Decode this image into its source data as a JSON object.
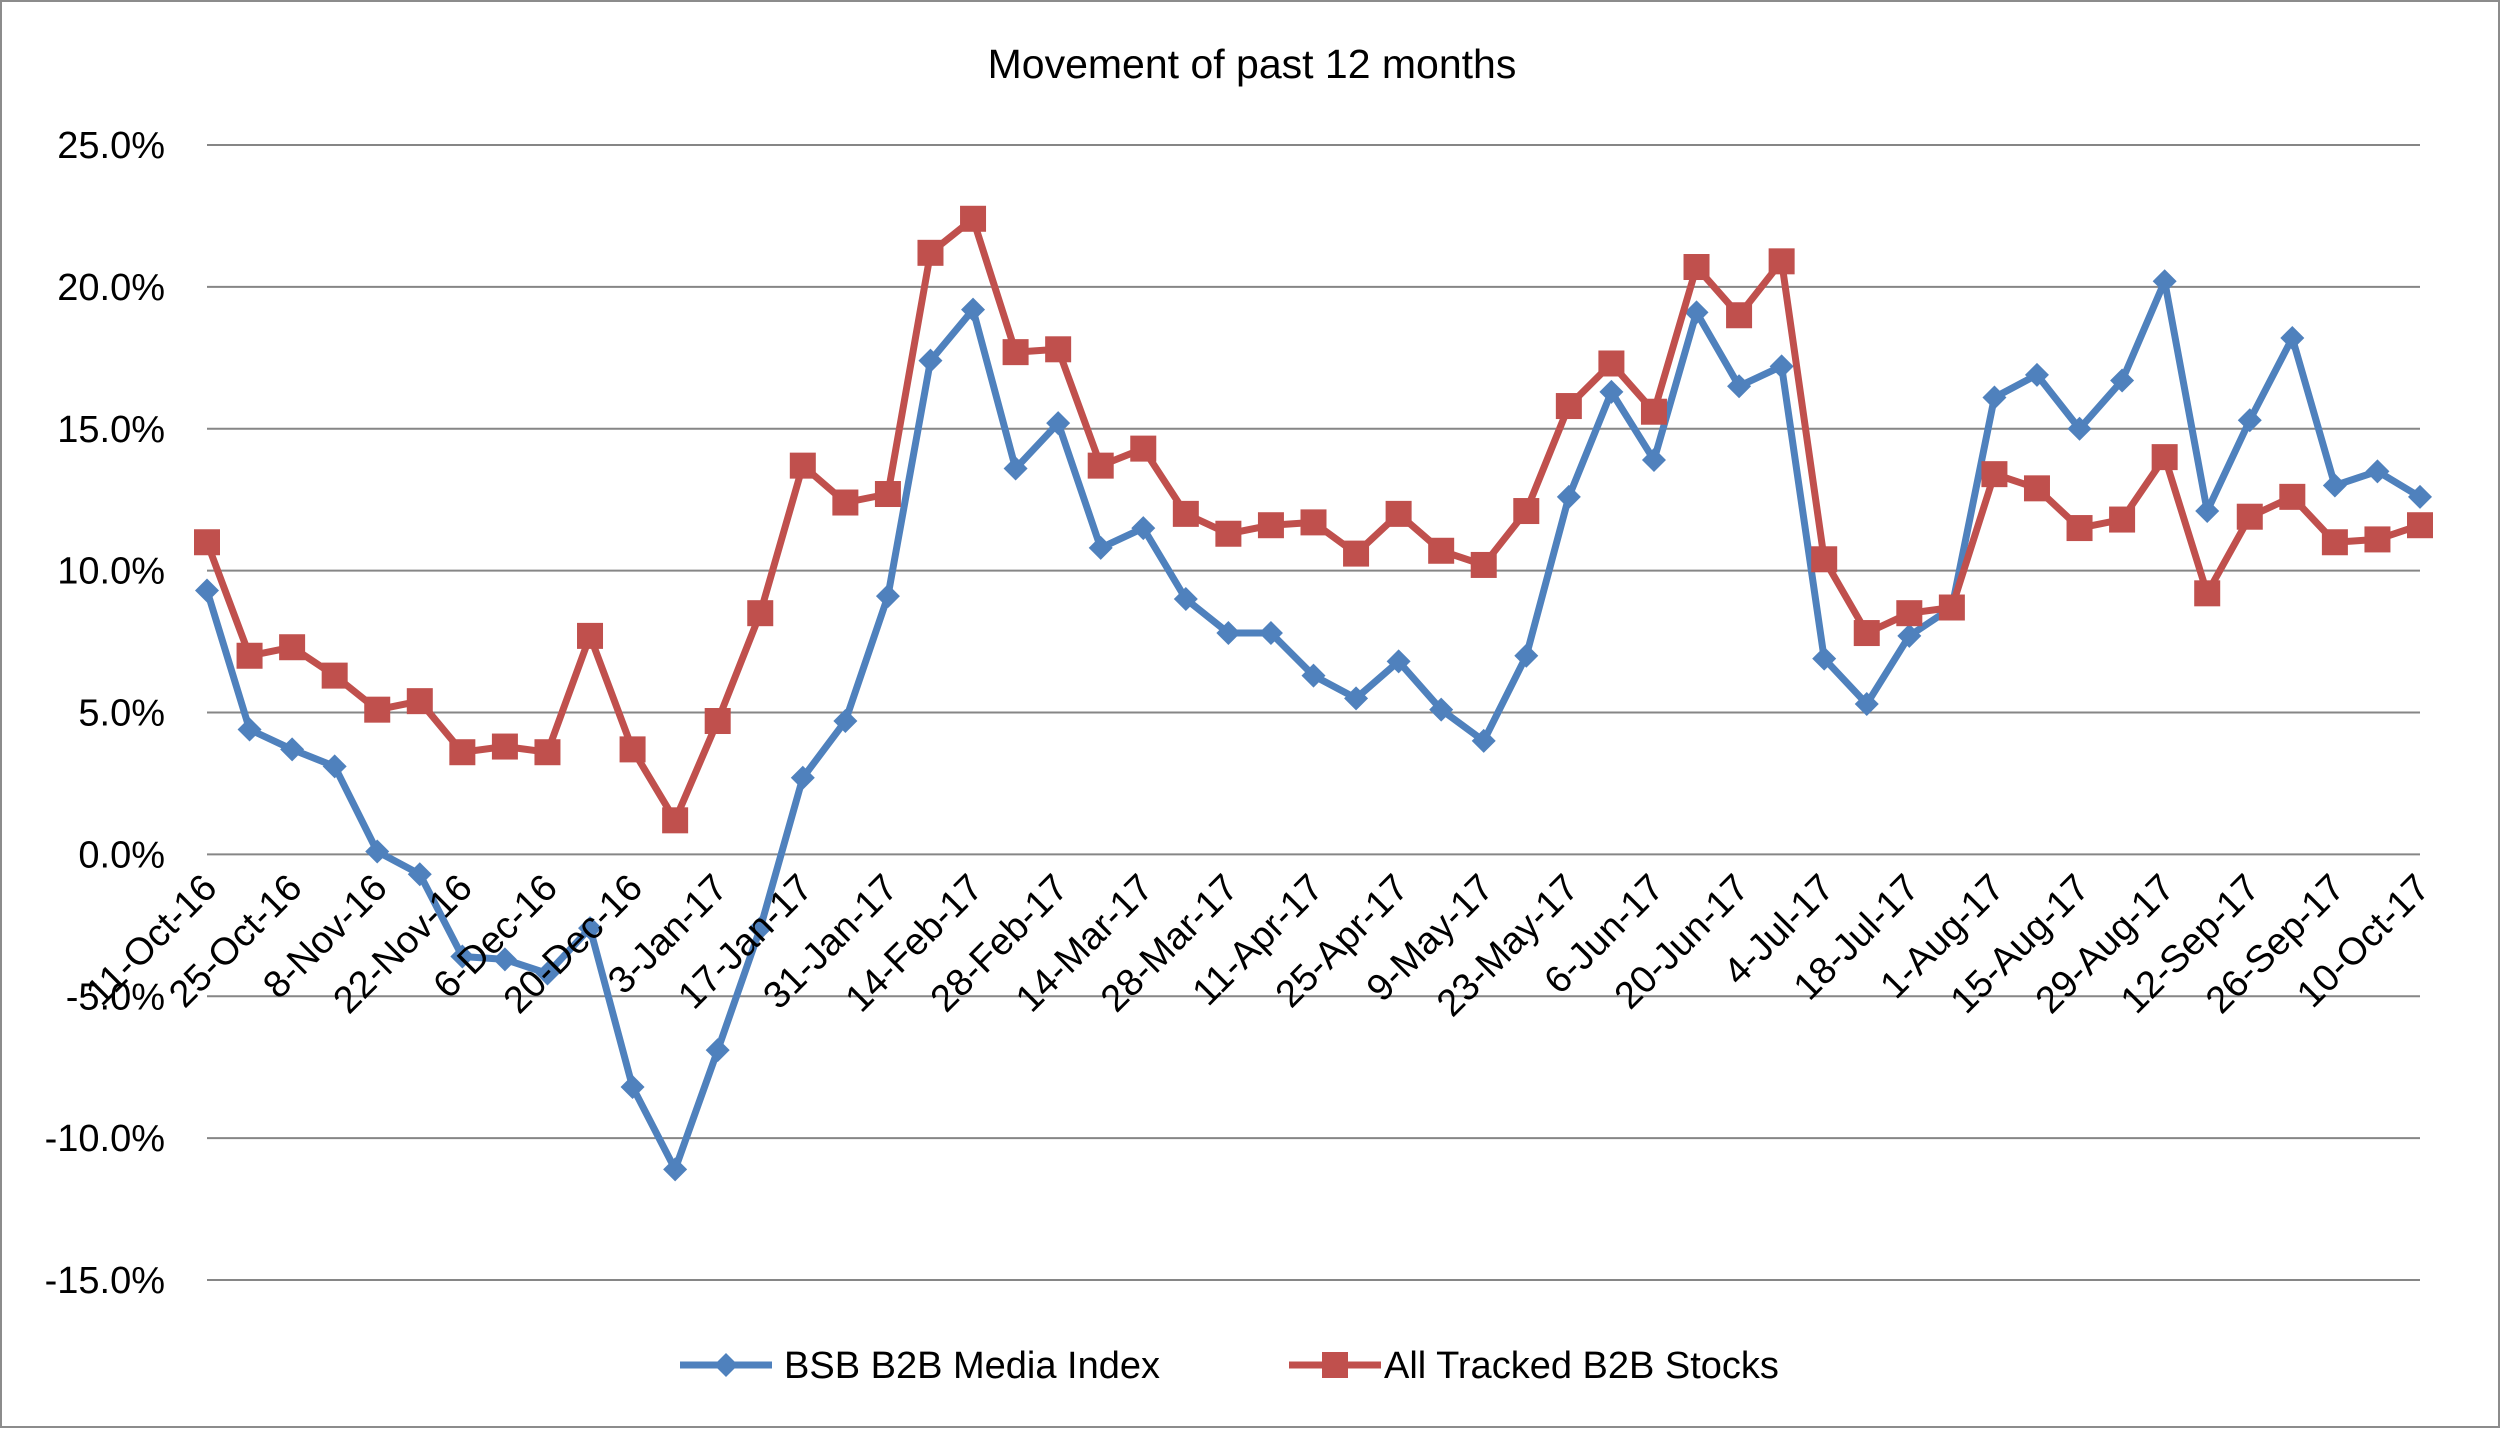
{
  "chart_data": {
    "type": "line",
    "title": "Movement of past 12 months",
    "xlabel": "",
    "ylabel": "",
    "ylim": [
      -15,
      25
    ],
    "ytick_step": 5,
    "yticks": [
      "25.0%",
      "20.0%",
      "15.0%",
      "10.0%",
      "5.0%",
      "0.0%",
      "-5.0%",
      "-10.0%",
      "-15.0%"
    ],
    "grid": true,
    "legend_position": "bottom",
    "x_tick_labels": [
      "11-Oct-16",
      "25-Oct-16",
      "8-Nov-16",
      "22-Nov-16",
      "6-Dec-16",
      "20-Dec-16",
      "3-Jan-17",
      "17-Jan-17",
      "31-Jan-17",
      "14-Feb-17",
      "28-Feb-17",
      "14-Mar-17",
      "28-Mar-17",
      "11-Apr-17",
      "25-Apr-17",
      "9-May-17",
      "23-May-17",
      "6-Jun-17",
      "20-Jun-17",
      "4-Jul-17",
      "18-Jul-17",
      "1-Aug-17",
      "15-Aug-17",
      "29-Aug-17",
      "12-Sep-17",
      "26-Sep-17",
      "10-Oct-17"
    ],
    "x_tick_every": 2,
    "point_count": 53,
    "series": [
      {
        "name": "BSB B2B Media Index",
        "color": "#4F81BD",
        "marker": "diamond",
        "values": [
          9.3,
          4.4,
          3.7,
          3.1,
          0.1,
          -0.7,
          -3.6,
          -3.7,
          -4.2,
          -2.6,
          -8.2,
          -11.1,
          -6.9,
          -2.6,
          2.7,
          4.7,
          9.1,
          17.4,
          19.2,
          13.6,
          15.2,
          10.8,
          11.5,
          9.0,
          7.8,
          7.8,
          6.3,
          5.5,
          6.8,
          5.1,
          4.0,
          7.0,
          12.6,
          16.3,
          13.9,
          19.1,
          16.5,
          17.2,
          6.9,
          5.3,
          7.7,
          8.7,
          16.1,
          16.9,
          15.0,
          16.7,
          20.2,
          12.1,
          15.3,
          18.2,
          13.0,
          13.5,
          12.6
        ]
      },
      {
        "name": "All Tracked B2B Stocks",
        "color": "#C0504D",
        "marker": "square",
        "values": [
          11.0,
          7.0,
          7.3,
          6.3,
          5.1,
          5.4,
          3.6,
          3.8,
          3.6,
          7.7,
          3.7,
          1.2,
          4.7,
          8.5,
          13.7,
          12.4,
          12.7,
          21.2,
          22.4,
          17.7,
          17.8,
          13.7,
          14.3,
          12.0,
          11.3,
          11.6,
          11.7,
          10.6,
          12.0,
          10.7,
          10.2,
          12.1,
          15.8,
          17.3,
          15.6,
          20.7,
          19.0,
          20.9,
          10.4,
          7.8,
          8.5,
          8.7,
          13.4,
          12.9,
          11.5,
          11.8,
          14.0,
          9.2,
          11.9,
          12.6,
          11.0,
          11.1,
          11.6
        ]
      }
    ]
  }
}
